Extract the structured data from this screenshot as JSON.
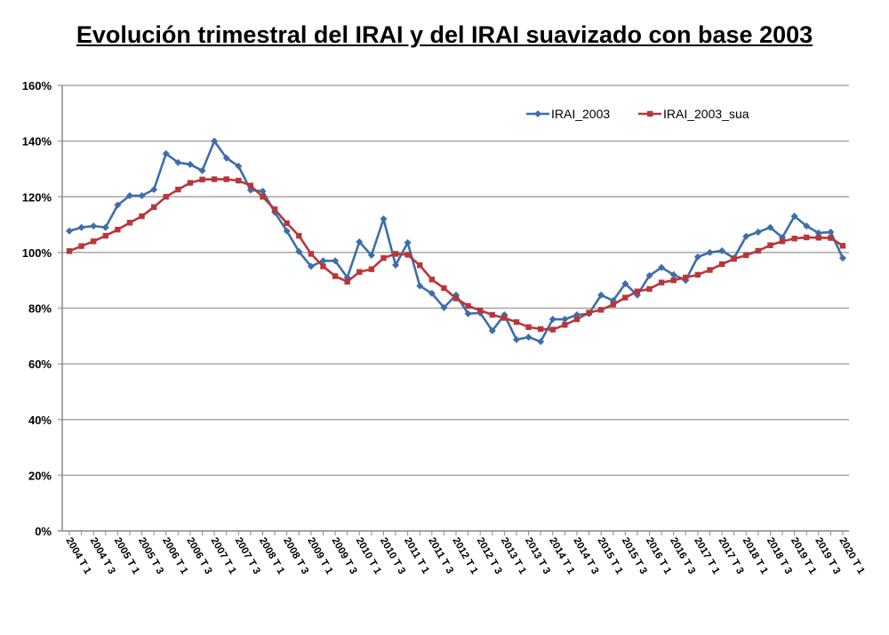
{
  "chart_data": {
    "type": "line",
    "title": "Evolución trimestral del IRAI y del IRAI suavizado con base 2003",
    "xlabel": "",
    "ylabel": "",
    "ylim": [
      0,
      160
    ],
    "yticks": [
      "0%",
      "20%",
      "40%",
      "60%",
      "80%",
      "100%",
      "120%",
      "140%",
      "160%"
    ],
    "ytick_values": [
      0,
      20,
      40,
      60,
      80,
      100,
      120,
      140,
      160
    ],
    "grid": true,
    "legend_position": "top-right",
    "x_tick_labels": [
      "2004 T 1",
      "2004 T 3",
      "2005 T 1",
      "2005 T 3",
      "2006 T 1",
      "2006 T 3",
      "2007 T 1",
      "2007 T 3",
      "2008 T 1",
      "2008 T 3",
      "2009 T 1",
      "2009 T 3",
      "2010 T 1",
      "2010 T 3",
      "2011 T 1",
      "2011 T 3",
      "2012 T 1",
      "2012 T 3",
      "2013 T 1",
      "2013 T 3",
      "2014 T 1",
      "2014 T 3",
      "2015 T 1",
      "2015 T 3",
      "2016 T 1",
      "2016 T 3",
      "2017 T 1",
      "2017 T 3",
      "2018 T 1",
      "2018 T 3",
      "2019 T 1",
      "2019 T 3",
      "2020 T 1"
    ],
    "series": [
      {
        "name": "IRAI_2003",
        "color": "#3c6eaa",
        "marker": "diamond",
        "values": [
          107.7,
          109,
          109.5,
          109,
          117,
          120.4,
          120.4,
          122.6,
          135.5,
          132.3,
          131.6,
          129.4,
          140,
          133.9,
          131,
          122.4,
          122,
          114.4,
          107.7,
          100.3,
          95,
          97,
          97,
          91,
          103.8,
          99,
          112,
          95.5,
          103.5,
          88,
          85.3,
          80.2,
          84.7,
          78,
          78.3,
          71.9,
          77.6,
          68.7,
          69.6,
          68,
          76,
          76,
          77.6,
          78,
          84.7,
          82.7,
          88.8,
          84.7,
          91.7,
          94.6,
          92,
          90,
          98.4,
          100,
          100.6,
          98,
          105.8,
          107.3,
          109,
          105.4,
          113,
          109.5,
          107,
          107.3,
          98
        ]
      },
      {
        "name": "IRAI_2003_sua",
        "color": "#b8363a",
        "marker": "square",
        "values": [
          100.5,
          102.3,
          104,
          106,
          108.2,
          110.7,
          113,
          116.3,
          120,
          122.6,
          125,
          126.2,
          126.3,
          126.3,
          125.8,
          124,
          120,
          115.5,
          110.5,
          106,
          99.5,
          95,
          91.5,
          89.5,
          93,
          94,
          98,
          99.5,
          99.2,
          95.4,
          90.3,
          87.2,
          83.5,
          80.8,
          79.2,
          77.6,
          76.5,
          75,
          73.2,
          72.5,
          72.3,
          74,
          76,
          78.4,
          79.4,
          81.3,
          83.8,
          86,
          86.9,
          89.2,
          90,
          91,
          92,
          93.7,
          95.8,
          97.7,
          99,
          100.6,
          102.6,
          104,
          105,
          105.4,
          105.3,
          105.2,
          102.4
        ]
      }
    ]
  }
}
